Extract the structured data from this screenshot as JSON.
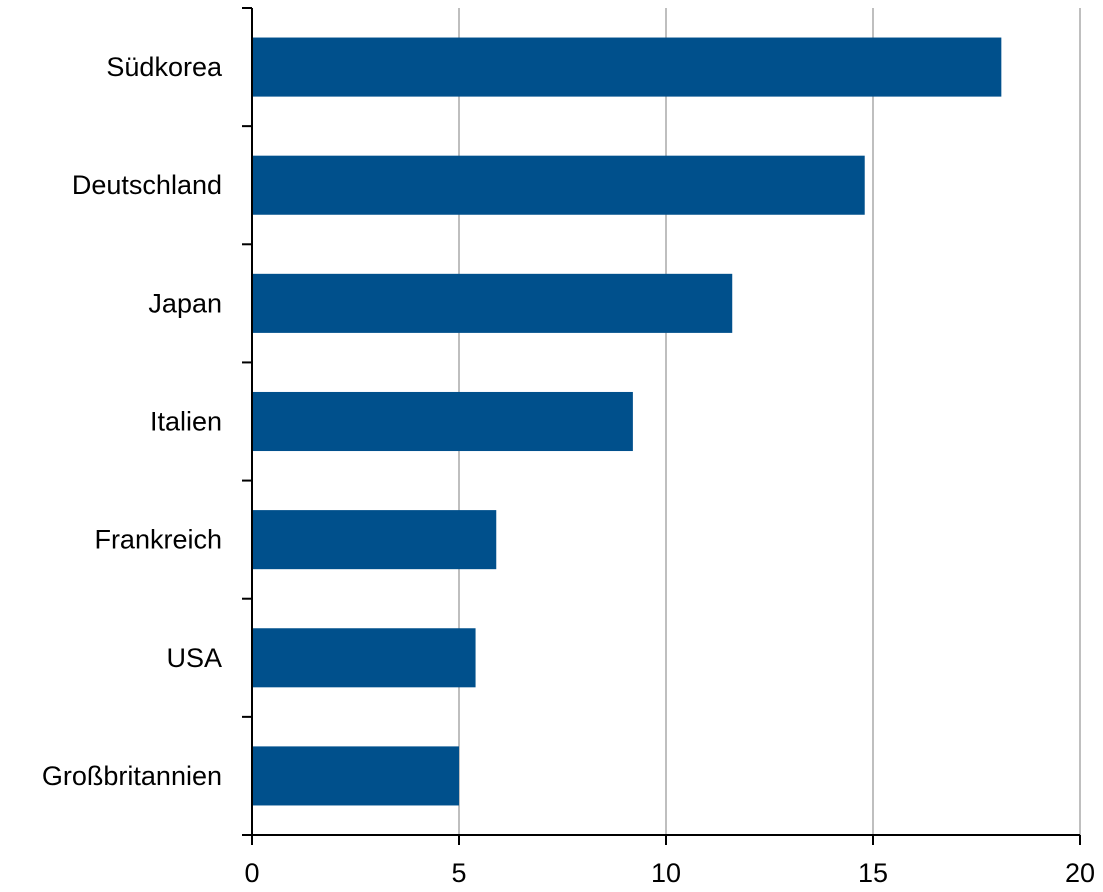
{
  "chart_data": {
    "type": "bar",
    "orientation": "horizontal",
    "categories": [
      "Südkorea",
      "Deutschland",
      "Japan",
      "Italien",
      "Frankreich",
      "USA",
      "Großbritannien"
    ],
    "values": [
      18.1,
      14.8,
      11.6,
      9.2,
      5.9,
      5.4,
      5.0
    ],
    "xlim": [
      0,
      20
    ],
    "xticks": [
      "0",
      "5",
      "10",
      "15",
      "20"
    ],
    "grid": "vertical",
    "bar_color": "#00508C",
    "grid_color": "#BFBFBF"
  }
}
